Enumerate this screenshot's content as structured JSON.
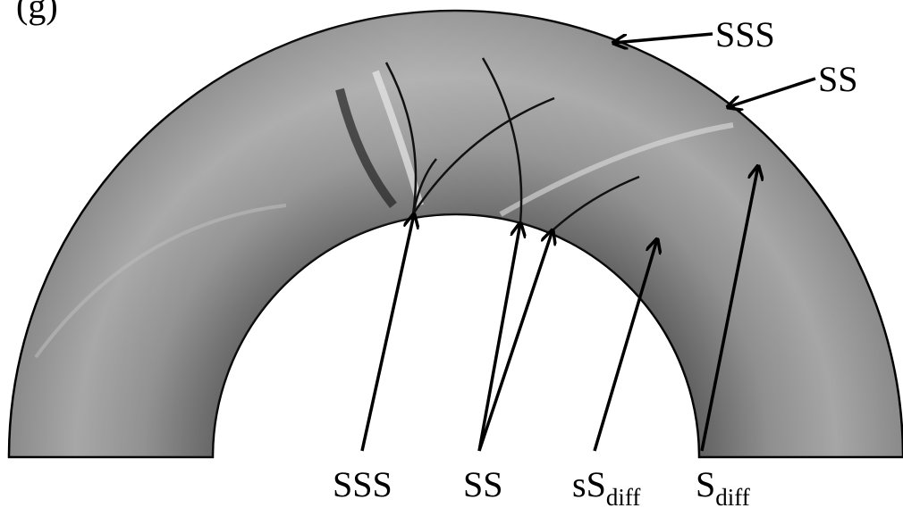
{
  "panel": "(g)",
  "labels": [
    {
      "text": "SSS"
    },
    {
      "text": "SS"
    },
    {
      "text": "SSS"
    },
    {
      "text": "SS"
    },
    {
      "text": "sS",
      "sub": "diff"
    },
    {
      "text": "S",
      "sub": "diff"
    }
  ]
}
